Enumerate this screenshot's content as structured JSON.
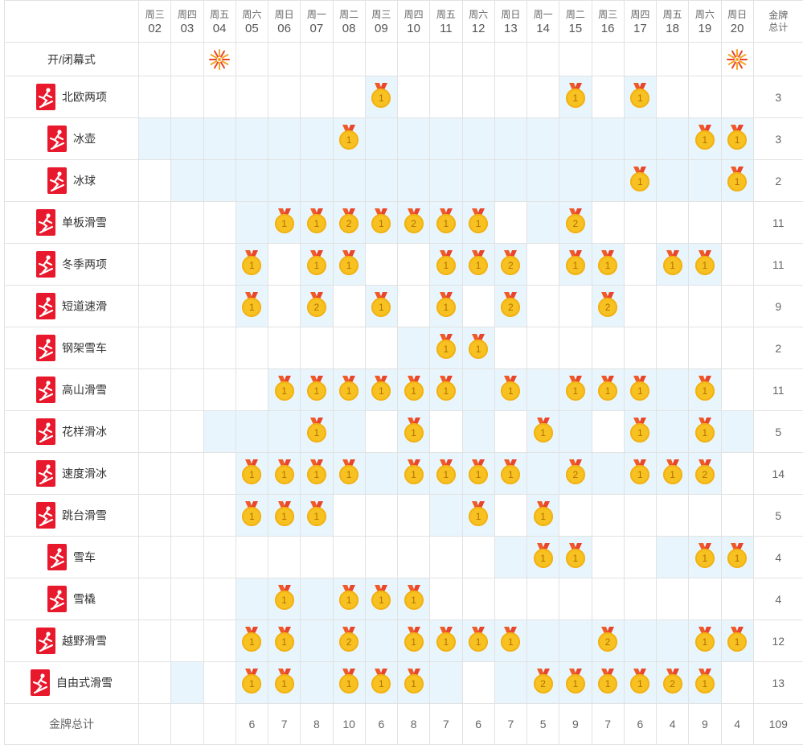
{
  "header": {
    "days": [
      {
        "weekday": "周三",
        "date": "02"
      },
      {
        "weekday": "周四",
        "date": "03"
      },
      {
        "weekday": "周五",
        "date": "04"
      },
      {
        "weekday": "周六",
        "date": "05"
      },
      {
        "weekday": "周日",
        "date": "06"
      },
      {
        "weekday": "周一",
        "date": "07"
      },
      {
        "weekday": "周二",
        "date": "08"
      },
      {
        "weekday": "周三",
        "date": "09"
      },
      {
        "weekday": "周四",
        "date": "10"
      },
      {
        "weekday": "周五",
        "date": "11"
      },
      {
        "weekday": "周六",
        "date": "12"
      },
      {
        "weekday": "周日",
        "date": "13"
      },
      {
        "weekday": "周一",
        "date": "14"
      },
      {
        "weekday": "周二",
        "date": "15"
      },
      {
        "weekday": "周三",
        "date": "16"
      },
      {
        "weekday": "周四",
        "date": "17"
      },
      {
        "weekday": "周五",
        "date": "18"
      },
      {
        "weekday": "周六",
        "date": "19"
      },
      {
        "weekday": "周日",
        "date": "20"
      }
    ],
    "total_label_line1": "金牌",
    "total_label_line2": "总计"
  },
  "ceremony": {
    "label": "开/闭幕式",
    "event_days": [
      2,
      18
    ],
    "icon": "firework-icon"
  },
  "sports": [
    {
      "name": "北欧两项",
      "icon": "nordic-combined-icon",
      "hl": [
        7,
        13,
        15
      ],
      "medals": {
        "7": 1,
        "13": 1,
        "15": 1
      },
      "total": "3"
    },
    {
      "name": "冰壶",
      "icon": "curling-icon",
      "hl": [
        0,
        1,
        2,
        3,
        4,
        5,
        6,
        7,
        8,
        9,
        10,
        11,
        12,
        13,
        14,
        15,
        16,
        17,
        18
      ],
      "medals": {
        "6": 1,
        "17": 1,
        "18": 1
      },
      "total": "3"
    },
    {
      "name": "冰球",
      "icon": "ice-hockey-icon",
      "hl": [
        1,
        2,
        3,
        4,
        5,
        6,
        7,
        8,
        9,
        10,
        11,
        12,
        13,
        14,
        15,
        16,
        17,
        18
      ],
      "medals": {
        "15": 1,
        "18": 1
      },
      "total": "2"
    },
    {
      "name": "单板滑雪",
      "icon": "snowboard-icon",
      "hl": [
        3,
        4,
        5,
        6,
        7,
        8,
        9,
        10,
        12,
        13
      ],
      "medals": {
        "4": 1,
        "5": 1,
        "6": 2,
        "7": 1,
        "8": 2,
        "9": 1,
        "10": 1,
        "13": 2
      },
      "total": "11"
    },
    {
      "name": "冬季两项",
      "icon": "biathlon-icon",
      "hl": [
        3,
        5,
        6,
        9,
        10,
        11,
        13,
        14,
        16,
        17
      ],
      "medals": {
        "3": 1,
        "5": 1,
        "6": 1,
        "9": 1,
        "10": 1,
        "11": 2,
        "13": 1,
        "14": 1,
        "16": 1,
        "17": 1
      },
      "total": "11"
    },
    {
      "name": "短道速滑",
      "icon": "short-track-icon",
      "hl": [
        3,
        5,
        7,
        9,
        11,
        14
      ],
      "medals": {
        "3": 1,
        "5": 2,
        "7": 1,
        "9": 1,
        "11": 2,
        "14": 2
      },
      "total": "9"
    },
    {
      "name": "钢架雪车",
      "icon": "skeleton-icon",
      "hl": [
        8,
        9,
        10
      ],
      "medals": {
        "9": 1,
        "10": 1
      },
      "total": "2"
    },
    {
      "name": "高山滑雪",
      "icon": "alpine-skiing-icon",
      "hl": [
        4,
        5,
        6,
        7,
        8,
        9,
        10,
        11,
        12,
        13,
        14,
        15,
        16,
        17
      ],
      "medals": {
        "4": 1,
        "5": 1,
        "6": 1,
        "7": 1,
        "8": 1,
        "9": 1,
        "11": 1,
        "13": 1,
        "14": 1,
        "15": 1,
        "17": 1
      },
      "total": "11"
    },
    {
      "name": "花样滑冰",
      "icon": "figure-skating-icon",
      "hl": [
        2,
        3,
        4,
        5,
        6,
        8,
        10,
        12,
        13,
        15,
        16,
        17,
        18
      ],
      "medals": {
        "5": 1,
        "8": 1,
        "12": 1,
        "15": 1,
        "17": 1
      },
      "total": "5"
    },
    {
      "name": "速度滑冰",
      "icon": "speed-skating-icon",
      "hl": [
        3,
        4,
        5,
        6,
        7,
        8,
        9,
        10,
        11,
        12,
        13,
        14,
        15,
        16,
        17
      ],
      "medals": {
        "3": 1,
        "4": 1,
        "5": 1,
        "6": 1,
        "8": 1,
        "9": 1,
        "10": 1,
        "11": 1,
        "13": 2,
        "15": 1,
        "16": 1,
        "17": 2
      },
      "total": "14"
    },
    {
      "name": "跳台滑雪",
      "icon": "ski-jumping-icon",
      "hl": [
        3,
        4,
        5,
        9,
        10,
        12
      ],
      "medals": {
        "3": 1,
        "4": 1,
        "5": 1,
        "10": 1,
        "12": 1
      },
      "total": "5"
    },
    {
      "name": "雪车",
      "icon": "bobsleigh-icon",
      "hl": [
        11,
        12,
        13,
        16,
        17,
        18
      ],
      "medals": {
        "12": 1,
        "13": 1,
        "17": 1,
        "18": 1
      },
      "total": "4"
    },
    {
      "name": "雪橇",
      "icon": "luge-icon",
      "hl": [
        3,
        4,
        5,
        6,
        7,
        8
      ],
      "medals": {
        "4": 1,
        "6": 1,
        "7": 1,
        "8": 1
      },
      "total": "4"
    },
    {
      "name": "越野滑雪",
      "icon": "cross-country-icon",
      "hl": [
        3,
        4,
        5,
        6,
        7,
        8,
        9,
        10,
        11,
        12,
        13,
        14,
        15,
        16,
        17,
        18
      ],
      "medals": {
        "3": 1,
        "4": 1,
        "6": 2,
        "8": 1,
        "9": 1,
        "10": 1,
        "11": 1,
        "14": 2,
        "17": 1,
        "18": 1
      },
      "total": "12"
    },
    {
      "name": "自由式滑雪",
      "icon": "freestyle-skiing-icon",
      "hl": [
        1,
        3,
        4,
        5,
        6,
        7,
        8,
        9,
        11,
        12,
        13,
        14,
        15,
        16,
        17
      ],
      "medals": {
        "3": 1,
        "4": 1,
        "6": 1,
        "7": 1,
        "8": 1,
        "12": 2,
        "13": 1,
        "14": 1,
        "15": 1,
        "16": 2,
        "17": 1
      },
      "total": "13"
    }
  ],
  "totals": {
    "label": "金牌总计",
    "values": [
      "",
      "",
      "",
      "6",
      "7",
      "8",
      "10",
      "6",
      "8",
      "7",
      "6",
      "7",
      "5",
      "9",
      "7",
      "6",
      "4",
      "9",
      "4"
    ],
    "grand_total": "109"
  },
  "colors": {
    "highlight": "#e8f5fc",
    "pictogram": "#e8192c",
    "medal_gold": "#f7c221",
    "ribbon": "#f05a28"
  }
}
